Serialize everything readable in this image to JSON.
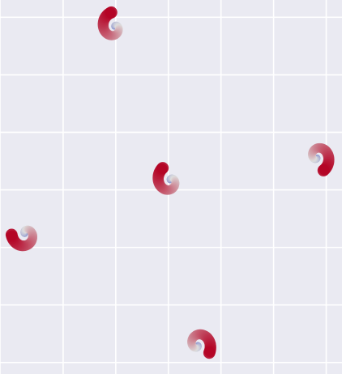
{
  "chart_data": {
    "type": "scatter",
    "title": "",
    "xlabel": "",
    "ylabel": "",
    "xlim": [
      0,
      6.5
    ],
    "ylim": [
      0,
      6.5
    ],
    "grid": true,
    "x_gridlines": [
      0,
      1.2,
      2.2,
      3.2,
      4.2,
      5.2,
      6.2
    ],
    "y_gridlines": [
      0.2,
      1.2,
      2.2,
      3.2,
      4.2,
      5.2,
      6.2
    ],
    "background_color": "#eaeaf2",
    "grid_color": "#ffffff",
    "colormap": {
      "name": "coolwarm",
      "low": "#3b4cc0",
      "mid": "#dddddd",
      "high": "#b40426"
    },
    "spirals": [
      {
        "center": [
          2.17,
          6.03
        ],
        "start_angle_deg": 120
      },
      {
        "center": [
          3.23,
          3.36
        ],
        "start_angle_deg": 140
      },
      {
        "center": [
          6.03,
          3.77
        ],
        "start_angle_deg": -45
      },
      {
        "center": [
          0.48,
          2.43
        ],
        "start_angle_deg": 200
      },
      {
        "center": [
          3.76,
          0.51
        ],
        "start_angle_deg": -15
      }
    ],
    "points_per_spiral": 60,
    "spiral_turns": 1.05,
    "spiral_max_radius": 0.26
  }
}
